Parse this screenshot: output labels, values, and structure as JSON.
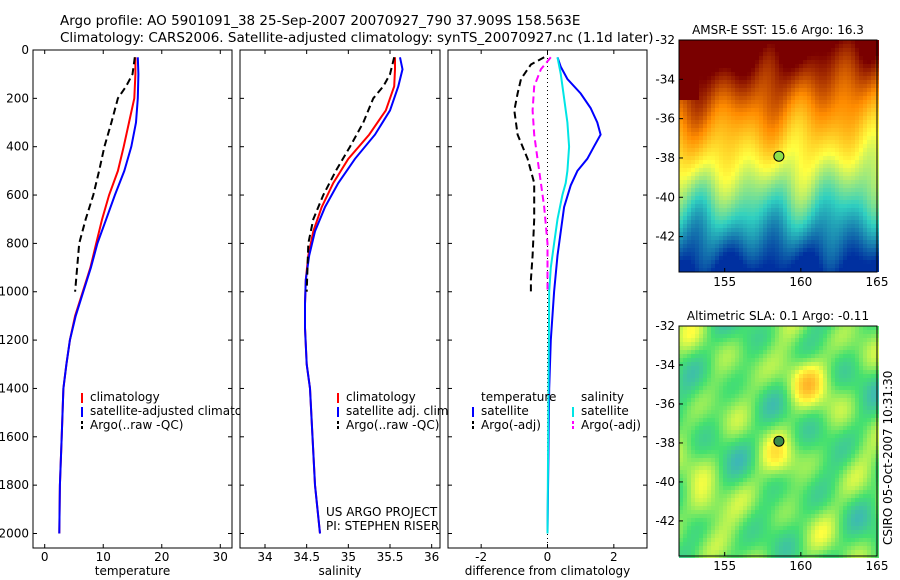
{
  "header": {
    "line1": "Argo profile: AO 5901091_38 25-Sep-2007 20070927_790 37.909S 158.563E",
    "line2": "Climatology: CARS2006. Satellite-adjusted climatology: synTS_20070927.nc (1.1d later)"
  },
  "colors": {
    "climatology": "#ff0000",
    "satellite": "#0000ff",
    "argo": "#000000",
    "sal_sat": "#00e5e5",
    "sal_argo": "#ff00ff"
  },
  "chart_data": [
    {
      "type": "line",
      "xlabel": "temperature",
      "xlim": [
        -2,
        32
      ],
      "xticks": [
        0,
        10,
        20,
        30
      ],
      "ylim": [
        2060,
        0
      ],
      "yticks": [
        0,
        200,
        400,
        600,
        800,
        1000,
        1200,
        1400,
        1600,
        1800,
        2000
      ],
      "legend": [
        "climatology",
        "satellite-adjusted climatology",
        "Argo(..raw -QC)"
      ],
      "series": [
        {
          "name": "climatology",
          "style": "solid",
          "color": "#ff0000",
          "x": [
            15.5,
            15.5,
            15.3,
            14.4,
            13.5,
            12.5,
            11.0,
            9.8,
            8.8,
            7.8,
            6.5,
            5.2,
            4.3,
            3.7,
            3.2,
            2.9,
            2.6,
            2.5
          ],
          "y": [
            30,
            100,
            200,
            300,
            400,
            500,
            600,
            700,
            800,
            900,
            1000,
            1100,
            1200,
            1300,
            1400,
            1600,
            1800,
            2000
          ]
        },
        {
          "name": "satellite-adjusted climatology",
          "style": "solid",
          "color": "#0000ff",
          "x": [
            15.9,
            16.0,
            15.9,
            15.6,
            14.8,
            13.6,
            12.0,
            10.5,
            9.0,
            7.9,
            6.6,
            5.3,
            4.3,
            3.7,
            3.2,
            2.9,
            2.6,
            2.5
          ],
          "y": [
            30,
            100,
            200,
            300,
            400,
            500,
            600,
            700,
            800,
            900,
            1000,
            1100,
            1200,
            1300,
            1400,
            1600,
            1800,
            2000
          ]
        },
        {
          "name": "Argo(..raw -QC)",
          "style": "dashed",
          "color": "#000000",
          "x": [
            15.4,
            15.0,
            13.9,
            12.5,
            11.4,
            10.2,
            9.3,
            8.3,
            7.0,
            5.9,
            5.2
          ],
          "y": [
            30,
            100,
            150,
            200,
            300,
            400,
            500,
            600,
            700,
            800,
            1000
          ]
        }
      ]
    },
    {
      "type": "line",
      "xlabel": "salinity",
      "xlim": [
        33.7,
        36.1
      ],
      "xticks": [
        34,
        34.5,
        35,
        35.5,
        36
      ],
      "ylim": [
        2060,
        0
      ],
      "legend": [
        "climatology",
        "satellite adj. clim.",
        "Argo(..raw -QC)"
      ],
      "annotation": [
        "US ARGO PROJECT",
        "PI: STEPHEN RISER"
      ],
      "series": [
        {
          "name": "climatology",
          "style": "solid",
          "color": "#ff0000",
          "x": [
            35.56,
            35.56,
            35.55,
            35.45,
            35.25,
            35.0,
            34.82,
            34.68,
            34.58,
            34.52,
            34.49,
            34.48,
            34.48,
            34.5,
            34.54,
            34.57,
            34.6,
            34.63,
            34.66
          ],
          "y": [
            30,
            80,
            150,
            250,
            350,
            450,
            550,
            650,
            750,
            850,
            950,
            1050,
            1150,
            1300,
            1400,
            1600,
            1800,
            1900,
            2000
          ]
        },
        {
          "name": "satellite adj. clim.",
          "style": "solid",
          "color": "#0000ff",
          "x": [
            35.62,
            35.65,
            35.6,
            35.5,
            35.32,
            35.08,
            34.88,
            34.72,
            34.6,
            34.53,
            34.49,
            34.48,
            34.48,
            34.5,
            34.54,
            34.57,
            34.6,
            34.63,
            34.66
          ],
          "y": [
            30,
            80,
            150,
            250,
            350,
            450,
            550,
            650,
            750,
            850,
            950,
            1050,
            1150,
            1300,
            1400,
            1600,
            1800,
            1900,
            2000
          ]
        },
        {
          "name": "Argo(..raw -QC)",
          "style": "dashed",
          "color": "#000000",
          "x": [
            35.55,
            35.5,
            35.42,
            35.3,
            35.18,
            35.02,
            34.85,
            34.7,
            34.58,
            34.52,
            34.5
          ],
          "y": [
            30,
            100,
            150,
            200,
            300,
            400,
            500,
            600,
            700,
            800,
            1000
          ]
        }
      ]
    },
    {
      "type": "line",
      "xlabel": "difference from climatology",
      "xlim": [
        -3,
        3
      ],
      "xticks": [
        -2,
        0,
        2
      ],
      "ylim": [
        2060,
        0
      ],
      "legend": [
        {
          "group": "temperature",
          "items": [
            "satellite",
            "Argo(-adj)"
          ]
        },
        {
          "group": "salinity",
          "items": [
            "satellite",
            "Argo(-adj)"
          ]
        }
      ],
      "series": [
        {
          "name": "satellite",
          "group": "temperature",
          "style": "solid",
          "color": "#0000ff",
          "x": [
            0.3,
            0.4,
            0.6,
            1.0,
            1.3,
            1.5,
            1.6,
            1.4,
            1.2,
            0.9,
            0.7,
            0.5,
            0.4,
            0.3,
            0.2,
            0.1,
            0.05,
            0.0
          ],
          "y": [
            30,
            70,
            120,
            180,
            240,
            300,
            350,
            400,
            450,
            500,
            560,
            650,
            750,
            850,
            1000,
            1200,
            1400,
            2000
          ]
        },
        {
          "name": "Argo(-adj)",
          "group": "temperature",
          "style": "dashed",
          "color": "#000000",
          "x": [
            -0.1,
            -0.5,
            -0.8,
            -0.9,
            -1.0,
            -0.9,
            -0.6,
            -0.4,
            -0.4,
            -0.45,
            -0.5,
            -0.5
          ],
          "y": [
            30,
            60,
            120,
            180,
            250,
            350,
            450,
            550,
            700,
            850,
            950,
            1000
          ]
        },
        {
          "name": "satellite",
          "group": "salinity",
          "style": "solid",
          "color": "#00e5e5",
          "x": [
            0.3,
            0.4,
            0.5,
            0.6,
            0.65,
            0.6,
            0.55,
            0.45,
            0.3,
            0.2,
            0.1,
            0.05,
            0.0
          ],
          "y": [
            30,
            100,
            200,
            300,
            400,
            500,
            550,
            600,
            700,
            800,
            900,
            1000,
            2000
          ]
        },
        {
          "name": "Argo(-adj)",
          "group": "salinity",
          "style": "dashed",
          "color": "#ff00ff",
          "x": [
            0.1,
            -0.2,
            -0.4,
            -0.45,
            -0.4,
            -0.3,
            -0.2,
            -0.1,
            0.0,
            0.0,
            0.0
          ],
          "y": [
            30,
            80,
            150,
            250,
            350,
            450,
            550,
            650,
            800,
            900,
            1000
          ]
        }
      ]
    },
    {
      "type": "heatmap",
      "title": "AMSR-E SST: 15.6 Argo: 16.3",
      "xlim": [
        152,
        165
      ],
      "xticks": [
        155,
        160,
        165
      ],
      "ylim": [
        -43.8,
        -32
      ],
      "yticks": [
        -32,
        -34,
        -36,
        -38,
        -40,
        -42
      ],
      "marker": {
        "lon": 158.56,
        "lat": -37.91,
        "color": "#8ee04a"
      },
      "colors": [
        "#7a0000",
        "#ff8c00",
        "#ffff40",
        "#30d0c0",
        "#0030a0"
      ]
    },
    {
      "type": "heatmap",
      "title": "Altimetric SLA: 0.1 Argo: -0.11",
      "xlim": [
        152,
        165
      ],
      "xticks": [
        155,
        160,
        165
      ],
      "ylim": [
        -43.8,
        -32
      ],
      "yticks": [
        -32,
        -34,
        -36,
        -38,
        -40,
        -42
      ],
      "marker": {
        "lon": 158.56,
        "lat": -37.91,
        "color": "#3a8a4a"
      },
      "colors": [
        "#3aa8d0",
        "#44e070",
        "#ffff40",
        "#ff9a20"
      ]
    }
  ],
  "side_text": "CSIRO 05-Oct-2007 10:31:30"
}
